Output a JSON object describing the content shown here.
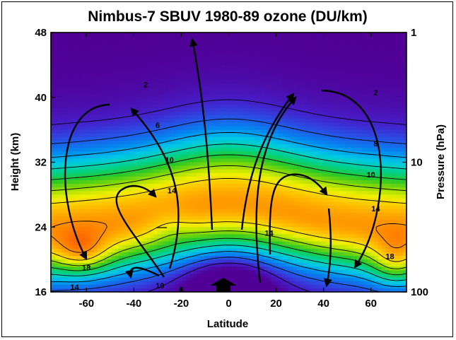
{
  "chart_data": {
    "type": "heatmap",
    "title": "Nimbus-7 SBUV 1980-89 ozone (DU/km)",
    "xlabel": "Latitude",
    "ylabel_left": "Height (km)",
    "ylabel_right": "Pressure (hPa)",
    "xlim": [
      -75,
      75
    ],
    "ylim": [
      16,
      48
    ],
    "x_ticks": [
      -60,
      -40,
      -20,
      0,
      20,
      40,
      60
    ],
    "y_ticks": [
      16,
      24,
      32,
      40,
      48
    ],
    "right_ticks": [
      {
        "label": "1",
        "height": 48
      },
      {
        "label": "10",
        "height": 32
      },
      {
        "label": "100",
        "height": 16
      }
    ],
    "grid": false,
    "contour_levels": [
      2,
      4,
      6,
      8,
      10,
      12,
      14,
      16,
      18
    ],
    "contour_labels": [
      {
        "text": "2",
        "lat": -35,
        "height": 41.5
      },
      {
        "text": "2",
        "lat": 62,
        "height": 40.5
      },
      {
        "text": "6",
        "lat": -30,
        "height": 36.5
      },
      {
        "text": "8",
        "lat": 62,
        "height": 34.2
      },
      {
        "text": "10",
        "lat": -25,
        "height": 32.2
      },
      {
        "text": "10",
        "lat": 60,
        "height": 30.4
      },
      {
        "text": "14",
        "lat": -24,
        "height": 28.4
      },
      {
        "text": "14",
        "lat": 62,
        "height": 26.2
      },
      {
        "text": "14",
        "lat": 17,
        "height": 23.2
      },
      {
        "text": "18",
        "lat": -60,
        "height": 18.9
      },
      {
        "text": "18",
        "lat": 68,
        "height": 20.3
      },
      {
        "text": "14",
        "lat": -65,
        "height": 16.5
      },
      {
        "text": "10",
        "lat": -29,
        "height": 16.7
      },
      {
        "text": "6",
        "lat": -20,
        "height": 16.2
      }
    ],
    "annotations": "Brewer-Dobson circulation arrows"
  }
}
